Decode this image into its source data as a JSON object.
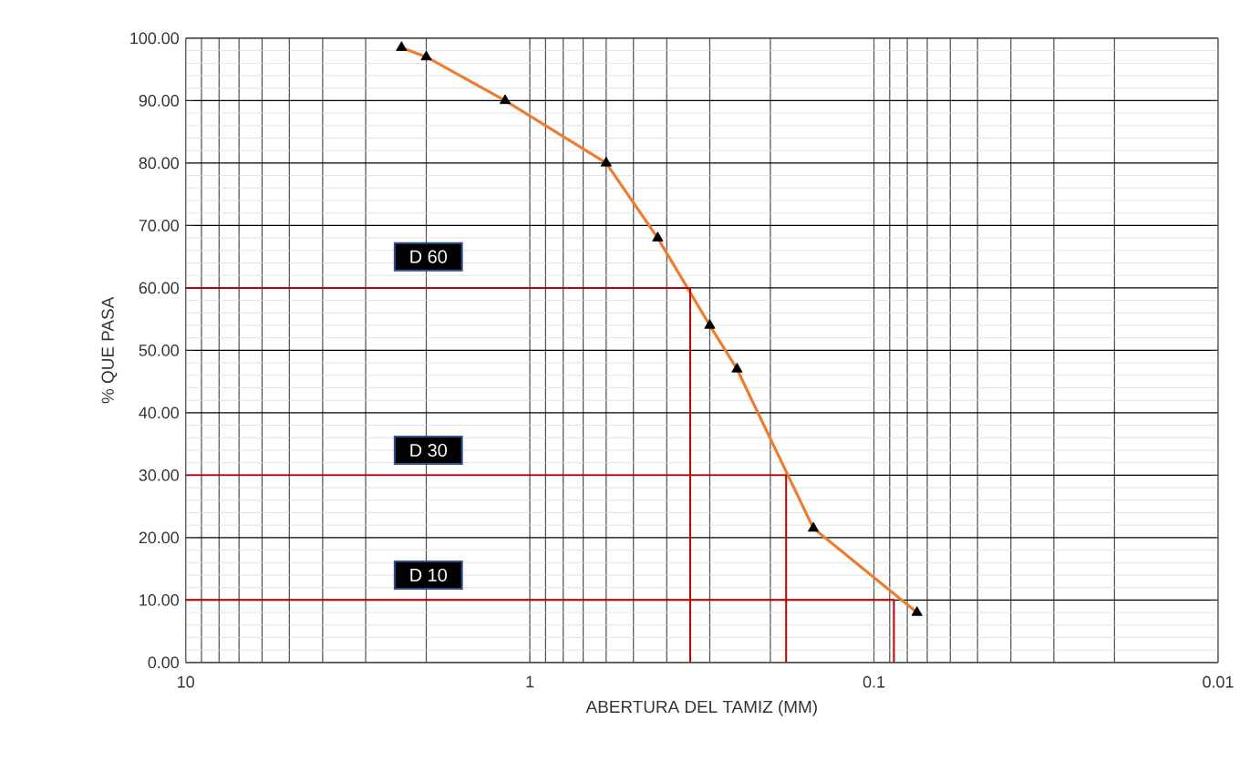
{
  "chart_data": {
    "type": "line",
    "xlabel": "ABERTURA DEL TAMIZ (MM)",
    "ylabel": "% QUE PASA",
    "log": "x",
    "grid": true,
    "xlim": [
      10,
      0.01
    ],
    "xticks": [
      10,
      1,
      0.1,
      0.01
    ],
    "ylim": [
      0,
      100
    ],
    "yticks": [
      {
        "value": 0,
        "label": "0.00"
      },
      {
        "value": 10,
        "label": "10.00"
      },
      {
        "value": 20,
        "label": "20.00"
      },
      {
        "value": 30,
        "label": "30.00"
      },
      {
        "value": 40,
        "label": "40.00"
      },
      {
        "value": 50,
        "label": "50.00"
      },
      {
        "value": 60,
        "label": "60.00"
      },
      {
        "value": 70,
        "label": "70.00"
      },
      {
        "value": 80,
        "label": "80.00"
      },
      {
        "value": 90,
        "label": "90.00"
      },
      {
        "value": 100,
        "label": "100.00"
      }
    ],
    "series": [
      {
        "color": "#ed7d31",
        "marker": "none",
        "x": [
          2.36,
          2.0,
          1.18,
          0.6,
          0.425,
          0.3,
          0.25,
          0.15,
          0.075
        ],
        "values": [
          98.5,
          97,
          90,
          80,
          68,
          54,
          47,
          21.5,
          8
        ]
      },
      {
        "type": "scatter",
        "color": "#000000",
        "marker": "triangle",
        "x": [
          2.36,
          2.0,
          1.18,
          0.6,
          0.425,
          0.3,
          0.25,
          0.15,
          0.075
        ],
        "values": [
          98.5,
          97,
          90,
          80,
          68,
          54,
          47,
          21.5,
          8
        ]
      },
      {
        "color": "#c00000",
        "marker": "none",
        "x": [
          10,
          0.342,
          0.342
        ],
        "values": [
          60,
          60,
          0
        ]
      },
      {
        "color": "#c00000",
        "marker": "none",
        "x": [
          10,
          0.18,
          0.18
        ],
        "values": [
          30,
          30,
          0
        ]
      },
      {
        "color": "#c00000",
        "marker": "none",
        "x": [
          10,
          0.0875,
          0.0875
        ],
        "values": [
          10,
          10,
          0
        ]
      }
    ],
    "annotations": [
      "D 60",
      "D 30",
      "D 10"
    ]
  }
}
